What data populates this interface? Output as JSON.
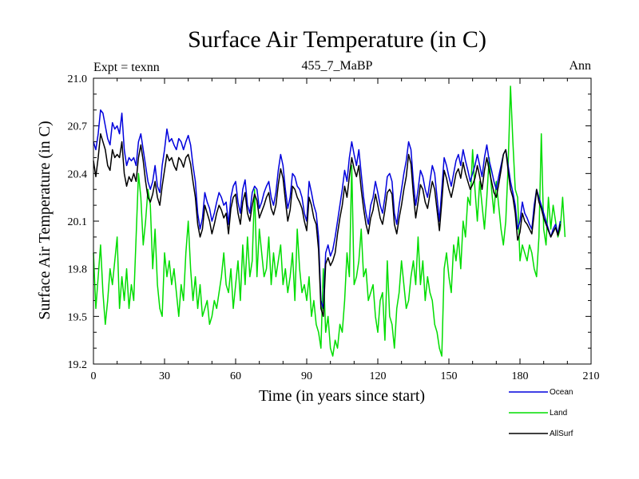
{
  "chart_data": {
    "type": "line",
    "title": "Surface Air Temperature (in C)",
    "subtitle": "455_7_MaBP",
    "left_label": "Expt = texnn",
    "right_label": "Ann",
    "xlabel": "Time (in years since start)",
    "ylabel": "Surface Air Temperature (in C)",
    "xlim": [
      0,
      210
    ],
    "ylim": [
      19.2,
      21.0
    ],
    "xticks": [
      0,
      30,
      60,
      90,
      120,
      150,
      180,
      210
    ],
    "yticks": [
      19.2,
      19.5,
      19.8,
      20.1,
      20.4,
      20.7,
      21.0
    ],
    "ytick_labels": [
      "19.2",
      "19.5",
      "19.8",
      "20.1",
      "20.4",
      "20.7",
      "21.0"
    ],
    "legend_position": "bottom-right, below plot",
    "series": [
      {
        "name": "Ocean",
        "color": "#0000dd",
        "x_start": 0,
        "x_step": 1,
        "values": [
          20.6,
          20.55,
          20.65,
          20.8,
          20.78,
          20.7,
          20.62,
          20.58,
          20.72,
          20.68,
          20.7,
          20.65,
          20.78,
          20.55,
          20.45,
          20.5,
          20.48,
          20.5,
          20.45,
          20.6,
          20.65,
          20.55,
          20.45,
          20.35,
          20.3,
          20.35,
          20.45,
          20.32,
          20.28,
          20.45,
          20.55,
          20.68,
          20.6,
          20.62,
          20.58,
          20.55,
          20.62,
          20.6,
          20.55,
          20.6,
          20.64,
          20.58,
          20.45,
          20.35,
          20.15,
          20.05,
          20.12,
          20.28,
          20.22,
          20.18,
          20.1,
          20.15,
          20.22,
          20.28,
          20.25,
          20.2,
          20.22,
          20.08,
          20.25,
          20.32,
          20.35,
          20.22,
          20.15,
          20.3,
          20.36,
          20.2,
          20.15,
          20.28,
          20.32,
          20.3,
          20.18,
          20.22,
          20.28,
          20.32,
          20.35,
          20.25,
          20.2,
          20.28,
          20.42,
          20.52,
          20.45,
          20.3,
          20.18,
          20.25,
          20.4,
          20.38,
          20.32,
          20.3,
          20.25,
          20.15,
          20.1,
          20.35,
          20.28,
          20.2,
          20.15,
          20.0,
          19.6,
          19.55,
          19.9,
          19.95,
          19.88,
          19.92,
          20.0,
          20.1,
          20.2,
          20.3,
          20.42,
          20.35,
          20.5,
          20.6,
          20.52,
          20.45,
          20.55,
          20.4,
          20.25,
          20.15,
          20.08,
          20.2,
          20.25,
          20.35,
          20.28,
          20.2,
          20.15,
          20.25,
          20.38,
          20.4,
          20.35,
          20.15,
          20.08,
          20.2,
          20.3,
          20.4,
          20.48,
          20.6,
          20.55,
          20.35,
          20.2,
          20.3,
          20.42,
          20.38,
          20.3,
          20.25,
          20.35,
          20.45,
          20.4,
          20.25,
          20.1,
          20.3,
          20.5,
          20.45,
          20.38,
          20.32,
          20.4,
          20.48,
          20.52,
          20.45,
          20.55,
          20.48,
          20.42,
          20.35,
          20.4,
          20.45,
          20.52,
          20.45,
          20.38,
          20.5,
          20.58,
          20.48,
          20.42,
          20.35,
          20.3,
          20.38,
          20.45,
          20.52,
          20.55,
          20.45,
          20.35,
          20.28,
          20.2,
          20.05,
          20.1,
          20.22,
          20.15,
          20.12,
          20.08,
          20.05,
          20.2,
          20.3,
          20.25,
          20.2,
          20.15,
          20.1,
          20.05,
          20.0,
          20.05,
          20.08,
          20.02,
          20.1
        ]
      },
      {
        "name": "Land",
        "color": "#00dd00",
        "x_start": 0,
        "x_step": 1,
        "values": [
          19.9,
          19.55,
          19.75,
          19.95,
          19.65,
          19.45,
          19.6,
          19.8,
          19.7,
          19.85,
          20.0,
          19.55,
          19.75,
          19.6,
          19.8,
          19.55,
          19.7,
          19.6,
          20.0,
          20.4,
          20.25,
          19.95,
          20.1,
          20.3,
          20.2,
          19.8,
          20.05,
          19.7,
          19.55,
          19.5,
          19.9,
          19.75,
          19.85,
          19.7,
          19.8,
          19.65,
          19.5,
          19.7,
          19.6,
          19.9,
          20.1,
          19.8,
          19.6,
          19.75,
          19.55,
          19.7,
          19.5,
          19.55,
          19.6,
          19.45,
          19.5,
          19.6,
          19.55,
          19.65,
          19.75,
          19.9,
          19.7,
          19.65,
          19.8,
          19.55,
          19.7,
          19.85,
          19.6,
          19.95,
          19.7,
          20.0,
          19.75,
          19.85,
          20.3,
          19.75,
          20.05,
          19.9,
          19.75,
          19.8,
          20.0,
          19.7,
          19.9,
          19.75,
          19.85,
          19.95,
          19.7,
          19.8,
          19.65,
          19.75,
          19.9,
          19.6,
          20.05,
          19.8,
          19.65,
          19.7,
          19.6,
          19.75,
          19.5,
          19.6,
          19.45,
          19.4,
          19.3,
          19.8,
          19.4,
          19.5,
          19.3,
          19.25,
          19.35,
          19.3,
          19.45,
          19.4,
          19.6,
          19.9,
          19.75,
          20.45,
          19.7,
          19.75,
          19.85,
          20.05,
          19.75,
          19.8,
          19.6,
          19.65,
          19.7,
          19.5,
          19.4,
          19.6,
          19.65,
          19.35,
          19.85,
          19.5,
          19.45,
          19.3,
          19.55,
          19.65,
          19.85,
          19.7,
          19.55,
          19.6,
          19.75,
          19.85,
          19.7,
          20.0,
          19.7,
          19.85,
          19.6,
          19.75,
          19.65,
          19.6,
          19.45,
          19.4,
          19.3,
          19.25,
          19.8,
          19.9,
          19.75,
          19.65,
          19.95,
          19.85,
          20.0,
          19.8,
          20.1,
          20.0,
          20.25,
          20.2,
          20.55,
          20.3,
          20.1,
          20.35,
          20.2,
          20.05,
          20.25,
          20.5,
          20.3,
          20.15,
          20.35,
          20.2,
          20.05,
          19.95,
          20.1,
          20.45,
          20.95,
          20.6,
          20.3,
          20.25,
          19.85,
          19.95,
          19.9,
          19.85,
          19.95,
          19.9,
          19.8,
          19.75,
          20.0,
          20.65,
          20.05,
          19.95,
          20.25,
          20.05,
          20.2,
          20.1,
          20.0,
          20.05,
          20.25,
          20.0
        ]
      },
      {
        "name": "AllSurf",
        "color": "#000000",
        "x_start": 0,
        "x_step": 1,
        "values": [
          20.48,
          20.38,
          20.5,
          20.65,
          20.6,
          20.55,
          20.45,
          20.42,
          20.55,
          20.5,
          20.52,
          20.5,
          20.6,
          20.4,
          20.32,
          20.38,
          20.35,
          20.4,
          20.35,
          20.5,
          20.58,
          20.48,
          20.35,
          20.25,
          20.22,
          20.27,
          20.35,
          20.25,
          20.2,
          20.32,
          20.42,
          20.52,
          20.48,
          20.5,
          20.45,
          20.42,
          20.5,
          20.48,
          20.44,
          20.5,
          20.52,
          20.46,
          20.35,
          20.25,
          20.08,
          20.0,
          20.05,
          20.2,
          20.15,
          20.1,
          20.02,
          20.08,
          20.15,
          20.2,
          20.17,
          20.12,
          20.15,
          20.02,
          20.18,
          20.25,
          20.27,
          20.15,
          20.08,
          20.22,
          20.28,
          20.15,
          20.1,
          20.2,
          20.27,
          20.23,
          20.12,
          20.16,
          20.2,
          20.25,
          20.28,
          20.18,
          20.14,
          20.2,
          20.33,
          20.43,
          20.37,
          20.23,
          20.1,
          20.17,
          20.32,
          20.3,
          20.25,
          20.22,
          20.18,
          20.1,
          20.04,
          20.25,
          20.2,
          20.12,
          20.08,
          19.92,
          19.55,
          19.5,
          19.83,
          19.87,
          19.82,
          19.85,
          19.9,
          20.02,
          20.12,
          20.2,
          20.32,
          20.25,
          20.38,
          20.5,
          20.43,
          20.38,
          20.45,
          20.3,
          20.18,
          20.08,
          20.02,
          20.12,
          20.17,
          20.27,
          20.2,
          20.12,
          20.08,
          20.17,
          20.28,
          20.3,
          20.27,
          20.08,
          20.02,
          20.12,
          20.2,
          20.3,
          20.38,
          20.52,
          20.46,
          20.27,
          20.12,
          20.22,
          20.33,
          20.3,
          20.22,
          20.18,
          20.27,
          20.35,
          20.3,
          20.17,
          20.04,
          20.22,
          20.42,
          20.37,
          20.3,
          20.25,
          20.32,
          20.4,
          20.43,
          20.37,
          20.47,
          20.4,
          20.35,
          20.3,
          20.33,
          20.37,
          20.45,
          20.38,
          20.3,
          20.42,
          20.5,
          20.42,
          20.35,
          20.28,
          20.25,
          20.33,
          20.42,
          20.52,
          20.55,
          20.42,
          20.3,
          20.25,
          20.15,
          19.98,
          20.03,
          20.15,
          20.1,
          20.08,
          20.05,
          20.02,
          20.15,
          20.3,
          20.22,
          20.18,
          20.12,
          20.08,
          20.04,
          20.0,
          20.03,
          20.06,
          20.01,
          20.08
        ]
      }
    ]
  }
}
